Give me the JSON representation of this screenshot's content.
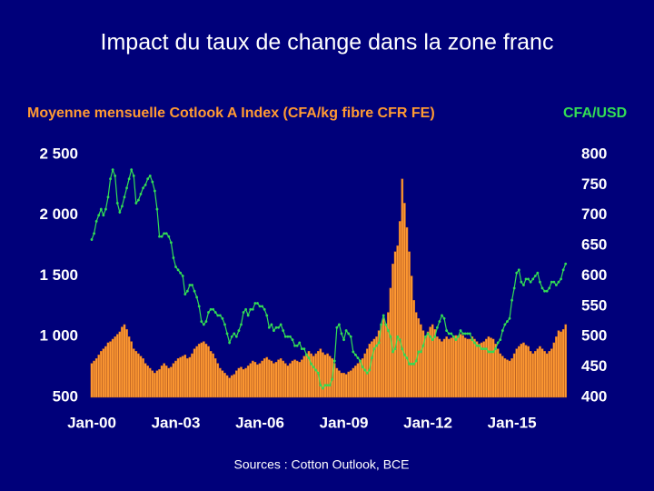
{
  "chart_data": {
    "type": "bar",
    "title": "Impact du taux de change dans la zone franc",
    "ylabel": "Moyenne mensuelle Cotlook A Index (CFA/kg fibre CFR FE)",
    "y2label": "CFA/USD",
    "source": "Sources : Cotton Outlook, BCE",
    "categories": [
      "Jan-00",
      null,
      null,
      null,
      null,
      null,
      null,
      null,
      null,
      null,
      null,
      null,
      null,
      null,
      null,
      null,
      null,
      null,
      null,
      null,
      null,
      null,
      null,
      null,
      null,
      null,
      null,
      null,
      null,
      null,
      null,
      null,
      null,
      null,
      null,
      null,
      "Jan-03",
      null,
      null,
      null,
      null,
      null,
      null,
      null,
      null,
      null,
      null,
      null,
      null,
      null,
      null,
      null,
      null,
      null,
      null,
      null,
      null,
      null,
      null,
      null,
      null,
      null,
      null,
      null,
      null,
      null,
      null,
      null,
      null,
      null,
      null,
      null,
      "Jan-06",
      null,
      null,
      null,
      null,
      null,
      null,
      null,
      null,
      null,
      null,
      null,
      null,
      null,
      null,
      null,
      null,
      null,
      null,
      null,
      null,
      null,
      null,
      null,
      null,
      null,
      null,
      null,
      null,
      null,
      null,
      null,
      null,
      null,
      null,
      null,
      "Jan-09",
      null,
      null,
      null,
      null,
      null,
      null,
      null,
      null,
      null,
      null,
      null,
      null,
      null,
      null,
      null,
      null,
      null,
      null,
      null,
      null,
      null,
      null,
      null,
      null,
      null,
      null,
      null,
      null,
      null,
      null,
      null,
      null,
      null,
      null,
      null,
      "Jan-12",
      null,
      null,
      null,
      null,
      null,
      null,
      null,
      null,
      null,
      null,
      null,
      null,
      null,
      null,
      null,
      null,
      null,
      null,
      null,
      null,
      null,
      null,
      null,
      null,
      null,
      null,
      null,
      null,
      null,
      null,
      null,
      null,
      null,
      null,
      null,
      "Jan-15",
      null,
      null,
      null,
      null,
      null,
      null,
      null,
      null,
      null,
      null,
      null,
      null,
      null,
      null,
      null,
      null,
      null,
      null,
      null,
      null,
      null,
      null,
      null
    ],
    "series": [
      {
        "type": "bar",
        "color": "#ff9a33",
        "values": [
          780,
          800,
          820,
          850,
          880,
          900,
          920,
          950,
          960,
          980,
          1000,
          1020,
          1040,
          1080,
          1100,
          1060,
          1000,
          960,
          900,
          880,
          860,
          840,
          820,
          780,
          760,
          740,
          720,
          700,
          720,
          730,
          760,
          780,
          760,
          740,
          750,
          780,
          800,
          820,
          830,
          840,
          850,
          820,
          830,
          860,
          900,
          920,
          940,
          950,
          960,
          940,
          920,
          880,
          860,
          820,
          780,
          740,
          720,
          700,
          680,
          660,
          680,
          690,
          720,
          740,
          750,
          730,
          740,
          760,
          780,
          800,
          790,
          770,
          780,
          800,
          820,
          830,
          810,
          800,
          780,
          790,
          810,
          820,
          800,
          780,
          760,
          780,
          800,
          810,
          800,
          790,
          810,
          840,
          860,
          880,
          860,
          840,
          860,
          880,
          900,
          870,
          850,
          860,
          840,
          820,
          780,
          740,
          720,
          700,
          700,
          690,
          710,
          720,
          740,
          760,
          780,
          800,
          820,
          860,
          900,
          940,
          960,
          980,
          1000,
          1050,
          1100,
          1150,
          1100,
          1200,
          1400,
          1600,
          1700,
          1750,
          1950,
          2300,
          2100,
          1900,
          1700,
          1500,
          1300,
          1200,
          1150,
          1100,
          1050,
          1000,
          1040,
          1080,
          1100,
          1060,
          1000,
          980,
          960,
          980,
          1000,
          980,
          990,
          1000,
          1010,
          1000,
          1020,
          1010,
          990,
          980,
          980,
          1000,
          980,
          960,
          940,
          950,
          960,
          980,
          1000,
          990,
          980,
          940,
          900,
          860,
          840,
          820,
          810,
          800,
          820,
          860,
          900,
          920,
          940,
          950,
          930,
          920,
          880,
          860,
          880,
          900,
          920,
          900,
          880,
          860,
          880,
          900,
          950,
          1000,
          1050,
          1040,
          1060,
          1100
        ]
      },
      {
        "type": "line",
        "axis": "y2",
        "color": "#33dd55",
        "values": [
          660,
          670,
          690,
          700,
          710,
          700,
          710,
          730,
          760,
          775,
          765,
          720,
          705,
          715,
          730,
          745,
          760,
          775,
          765,
          720,
          725,
          735,
          745,
          750,
          760,
          765,
          755,
          740,
          710,
          665,
          665,
          670,
          670,
          665,
          655,
          630,
          615,
          610,
          605,
          600,
          570,
          575,
          585,
          585,
          575,
          565,
          550,
          525,
          520,
          525,
          540,
          545,
          545,
          540,
          535,
          535,
          530,
          520,
          505,
          490,
          500,
          505,
          500,
          510,
          520,
          540,
          545,
          535,
          545,
          545,
          555,
          555,
          550,
          550,
          545,
          535,
          515,
          520,
          510,
          515,
          515,
          520,
          510,
          500,
          500,
          500,
          495,
          485,
          485,
          490,
          480,
          480,
          470,
          465,
          455,
          450,
          445,
          440,
          420,
          415,
          420,
          420,
          420,
          430,
          460,
          515,
          520,
          505,
          495,
          510,
          505,
          500,
          475,
          470,
          465,
          460,
          450,
          445,
          440,
          445,
          465,
          480,
          485,
          490,
          520,
          535,
          520,
          510,
          500,
          475,
          480,
          500,
          495,
          480,
          470,
          465,
          455,
          455,
          455,
          460,
          475,
          475,
          485,
          500,
          505,
          500,
          495,
          500,
          515,
          525,
          535,
          530,
          510,
          505,
          505,
          500,
          495,
          500,
          510,
          505,
          505,
          505,
          505,
          495,
          490,
          485,
          485,
          480,
          480,
          480,
          475,
          475,
          475,
          480,
          490,
          495,
          510,
          520,
          525,
          530,
          560,
          580,
          605,
          610,
          590,
          585,
          595,
          595,
          590,
          595,
          600,
          605,
          590,
          580,
          575,
          575,
          580,
          590,
          590,
          585,
          590,
          595,
          610,
          620
        ]
      }
    ],
    "ylim": [
      500,
      2500
    ],
    "yticks": [
      500,
      {
        "value": 1000,
        "label": "1 000"
      },
      {
        "value": 1500,
        "label": "1 500"
      },
      {
        "value": 2000,
        "label": "2 000"
      },
      {
        "value": 2500,
        "label": "2 500"
      }
    ],
    "y2lim": [
      400,
      800
    ],
    "y2ticks": [
      400,
      450,
      500,
      550,
      600,
      650,
      700,
      750,
      800
    ],
    "grid": false
  }
}
